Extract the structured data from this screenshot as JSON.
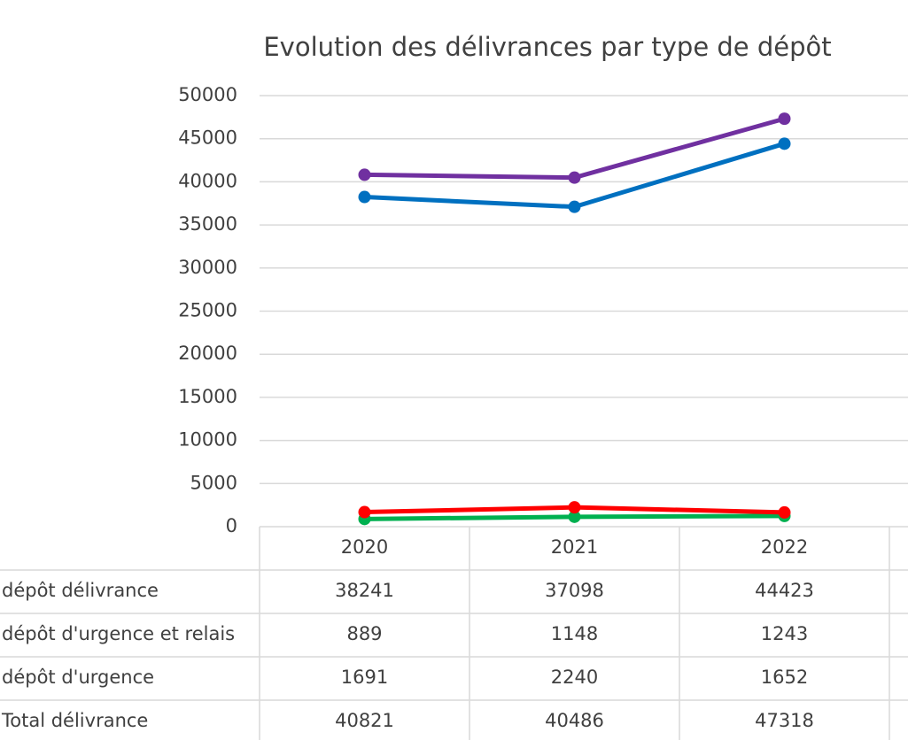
{
  "chart_data": {
    "type": "line",
    "title": "Evolution des délivrances par type de dépôt",
    "categories": [
      "2020",
      "2021",
      "2022"
    ],
    "series": [
      {
        "name": "dépôt délivrance",
        "color": "#0070c0",
        "values": [
          38241,
          37098,
          44423
        ]
      },
      {
        "name": "dépôt d'urgence et relais",
        "color": "#00b050",
        "values": [
          889,
          1148,
          1243
        ]
      },
      {
        "name": "dépôt d'urgence",
        "color": "#ff0000",
        "values": [
          1691,
          2240,
          1652
        ]
      },
      {
        "name": "Total délivrance",
        "color": "#7030a0",
        "values": [
          40821,
          40486,
          47318
        ]
      }
    ],
    "ylim": [
      0,
      50000
    ],
    "yticks": [
      0,
      5000,
      10000,
      15000,
      20000,
      25000,
      30000,
      35000,
      40000,
      45000,
      50000
    ],
    "grid": true
  }
}
